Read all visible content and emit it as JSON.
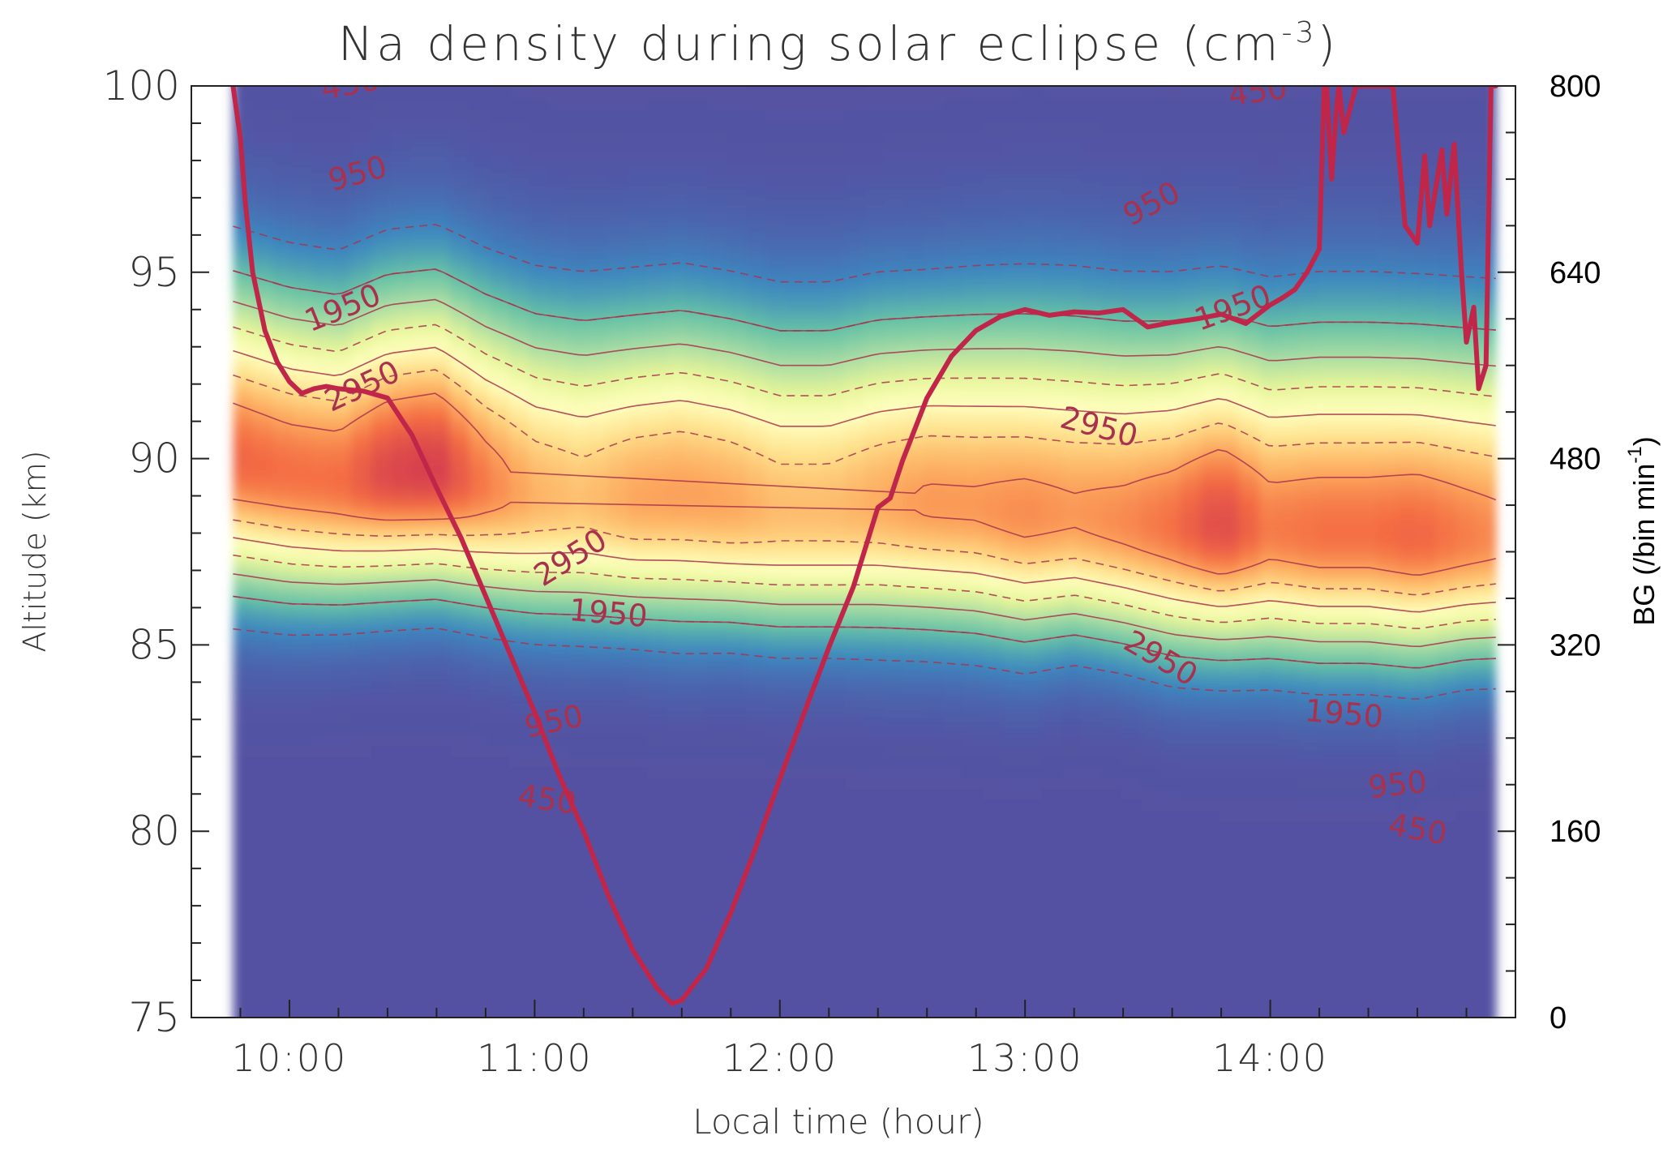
{
  "chart_data": {
    "type": "heatmap",
    "title": "Na density during solar eclipse (cm",
    "title_superscript": "-3",
    "title_close": ")",
    "xlabel": "Local time (hour)",
    "ylabel_left": "Altitude (km)",
    "ylabel_right_main": "BG (/bin min",
    "ylabel_right_sup": "-1",
    "ylabel_right_close": ")",
    "x_range_hours": [
      9.6,
      15.0
    ],
    "data_start_hour": 9.77,
    "data_end_hour": 14.92,
    "x_ticks": [
      {
        "value": 10,
        "label": "10:00"
      },
      {
        "value": 11,
        "label": "11:00"
      },
      {
        "value": 12,
        "label": "12:00"
      },
      {
        "value": 13,
        "label": "13:00"
      },
      {
        "value": 14,
        "label": "14:00"
      }
    ],
    "y_left_range": [
      75,
      100
    ],
    "y_left_ticks": [
      {
        "value": 75,
        "label": "75"
      },
      {
        "value": 80,
        "label": "80"
      },
      {
        "value": 85,
        "label": "85"
      },
      {
        "value": 90,
        "label": "90"
      },
      {
        "value": 95,
        "label": "95"
      },
      {
        "value": 100,
        "label": "100"
      }
    ],
    "y_right_range": [
      0,
      800
    ],
    "y_right_ticks": [
      {
        "value": 0,
        "label": "0"
      },
      {
        "value": 160,
        "label": "160"
      },
      {
        "value": 320,
        "label": "320"
      },
      {
        "value": 480,
        "label": "480"
      },
      {
        "value": 640,
        "label": "640"
      },
      {
        "value": 800,
        "label": "800"
      }
    ],
    "colorscale": [
      "#5451a2",
      "#3d87bf",
      "#66c2a5",
      "#abdda4",
      "#e6f598",
      "#ffffbf",
      "#fee08b",
      "#fdae61",
      "#f46d43",
      "#d53e4f"
    ],
    "contour_color": "#a8324e",
    "bg_line_color": "#c0264a",
    "na_layer": {
      "time": [
        9.77,
        10.0,
        10.2,
        10.4,
        10.6,
        10.8,
        11.0,
        11.2,
        11.4,
        11.6,
        11.8,
        12.0,
        12.2,
        12.4,
        12.6,
        12.8,
        13.0,
        13.2,
        13.4,
        13.6,
        13.8,
        14.0,
        14.2,
        14.4,
        14.6,
        14.8,
        14.92
      ],
      "peak_altitude_km": [
        90.0,
        89.6,
        89.4,
        89.6,
        89.7,
        89.3,
        89.0,
        88.9,
        88.9,
        89.0,
        88.8,
        88.6,
        88.6,
        88.8,
        88.8,
        88.7,
        88.5,
        88.5,
        88.3,
        88.2,
        88.2,
        88.1,
        88.0,
        88.0,
        87.9,
        87.9,
        87.9
      ],
      "peak_density_cm3": [
        3900,
        3800,
        3800,
        4200,
        4300,
        3700,
        3300,
        3150,
        3400,
        3450,
        3400,
        3200,
        3200,
        3350,
        3500,
        3500,
        3600,
        3500,
        3600,
        3800,
        4200,
        3700,
        3800,
        3800,
        3900,
        3700,
        3600
      ],
      "lower_sigma_km": [
        2.2,
        2.1,
        2.0,
        2.0,
        2.0,
        2.0,
        2.0,
        2.0,
        2.0,
        2.1,
        2.0,
        2.0,
        2.0,
        2.1,
        2.1,
        2.1,
        2.1,
        2.0,
        2.0,
        2.1,
        2.1,
        2.1,
        2.1,
        2.1,
        2.1,
        2.0,
        2.0
      ],
      "upper_sigma_km": [
        3.0,
        3.0,
        3.0,
        3.1,
        3.1,
        3.1,
        3.1,
        3.1,
        3.1,
        3.1,
        3.1,
        3.1,
        3.1,
        3.1,
        3.1,
        3.2,
        3.3,
        3.3,
        3.3,
        3.3,
        3.3,
        3.3,
        3.4,
        3.4,
        3.4,
        3.4,
        3.4
      ]
    },
    "contour_levels": [
      450,
      950,
      1950,
      2950
    ],
    "contour_labels": [
      {
        "text": "450",
        "t": 10.25,
        "alt": 100.0,
        "rot": -10
      },
      {
        "text": "950",
        "t": 10.28,
        "alt": 97.6,
        "rot": -15
      },
      {
        "text": "1950",
        "t": 10.22,
        "alt": 94.0,
        "rot": -22
      },
      {
        "text": "2950",
        "t": 10.3,
        "alt": 91.9,
        "rot": -25
      },
      {
        "text": "2950",
        "t": 11.15,
        "alt": 87.3,
        "rot": -32
      },
      {
        "text": "1950",
        "t": 11.3,
        "alt": 85.8,
        "rot": 5
      },
      {
        "text": "950",
        "t": 11.08,
        "alt": 82.9,
        "rot": -12
      },
      {
        "text": "450",
        "t": 11.05,
        "alt": 80.8,
        "rot": 8
      },
      {
        "text": "450",
        "t": 13.95,
        "alt": 99.8,
        "rot": -8
      },
      {
        "text": "950",
        "t": 13.52,
        "alt": 96.8,
        "rot": -28
      },
      {
        "text": "1950",
        "t": 13.85,
        "alt": 94.0,
        "rot": -20
      },
      {
        "text": "2950",
        "t": 13.3,
        "alt": 90.8,
        "rot": 15
      },
      {
        "text": "2950",
        "t": 13.55,
        "alt": 84.6,
        "rot": 30
      },
      {
        "text": "1950",
        "t": 14.3,
        "alt": 83.1,
        "rot": 5
      },
      {
        "text": "950",
        "t": 14.52,
        "alt": 81.2,
        "rot": -6
      },
      {
        "text": "450",
        "t": 14.6,
        "alt": 80.0,
        "rot": 10
      }
    ],
    "bg_series": {
      "name": "BG",
      "x_hours": [
        9.77,
        9.78,
        9.8,
        9.82,
        9.85,
        9.9,
        9.95,
        10.0,
        10.05,
        10.1,
        10.15,
        10.2,
        10.3,
        10.4,
        10.5,
        10.6,
        10.7,
        10.8,
        10.9,
        11.0,
        11.1,
        11.2,
        11.3,
        11.4,
        11.5,
        11.56,
        11.6,
        11.7,
        11.8,
        11.9,
        12.0,
        12.1,
        12.2,
        12.3,
        12.4,
        12.45,
        12.5,
        12.6,
        12.7,
        12.8,
        12.9,
        13.0,
        13.1,
        13.2,
        13.3,
        13.4,
        13.5,
        13.6,
        13.7,
        13.8,
        13.9,
        14.0,
        14.05,
        14.1,
        14.15,
        14.2,
        14.22,
        14.23,
        14.25,
        14.27,
        14.28,
        14.3,
        14.35,
        14.4,
        14.45,
        14.5,
        14.55,
        14.6,
        14.63,
        14.65,
        14.7,
        14.72,
        14.75,
        14.78,
        14.8,
        14.83,
        14.85,
        14.88,
        14.9,
        14.92
      ],
      "y_values": [
        800,
        785,
        755,
        700,
        640,
        590,
        563,
        546,
        536,
        540,
        542,
        540,
        538,
        532,
        500,
        455,
        412,
        362,
        312,
        262,
        208,
        160,
        105,
        58,
        25,
        12,
        15,
        42,
        90,
        145,
        205,
        262,
        318,
        370,
        438,
        446,
        478,
        532,
        568,
        590,
        602,
        608,
        603,
        606,
        605,
        608,
        593,
        597,
        600,
        604,
        596,
        612,
        618,
        625,
        640,
        660,
        800,
        800,
        720,
        780,
        800,
        760,
        800,
        800,
        800,
        800,
        680,
        665,
        740,
        680,
        745,
        690,
        750,
        640,
        580,
        610,
        540,
        560,
        800,
        800
      ]
    }
  }
}
